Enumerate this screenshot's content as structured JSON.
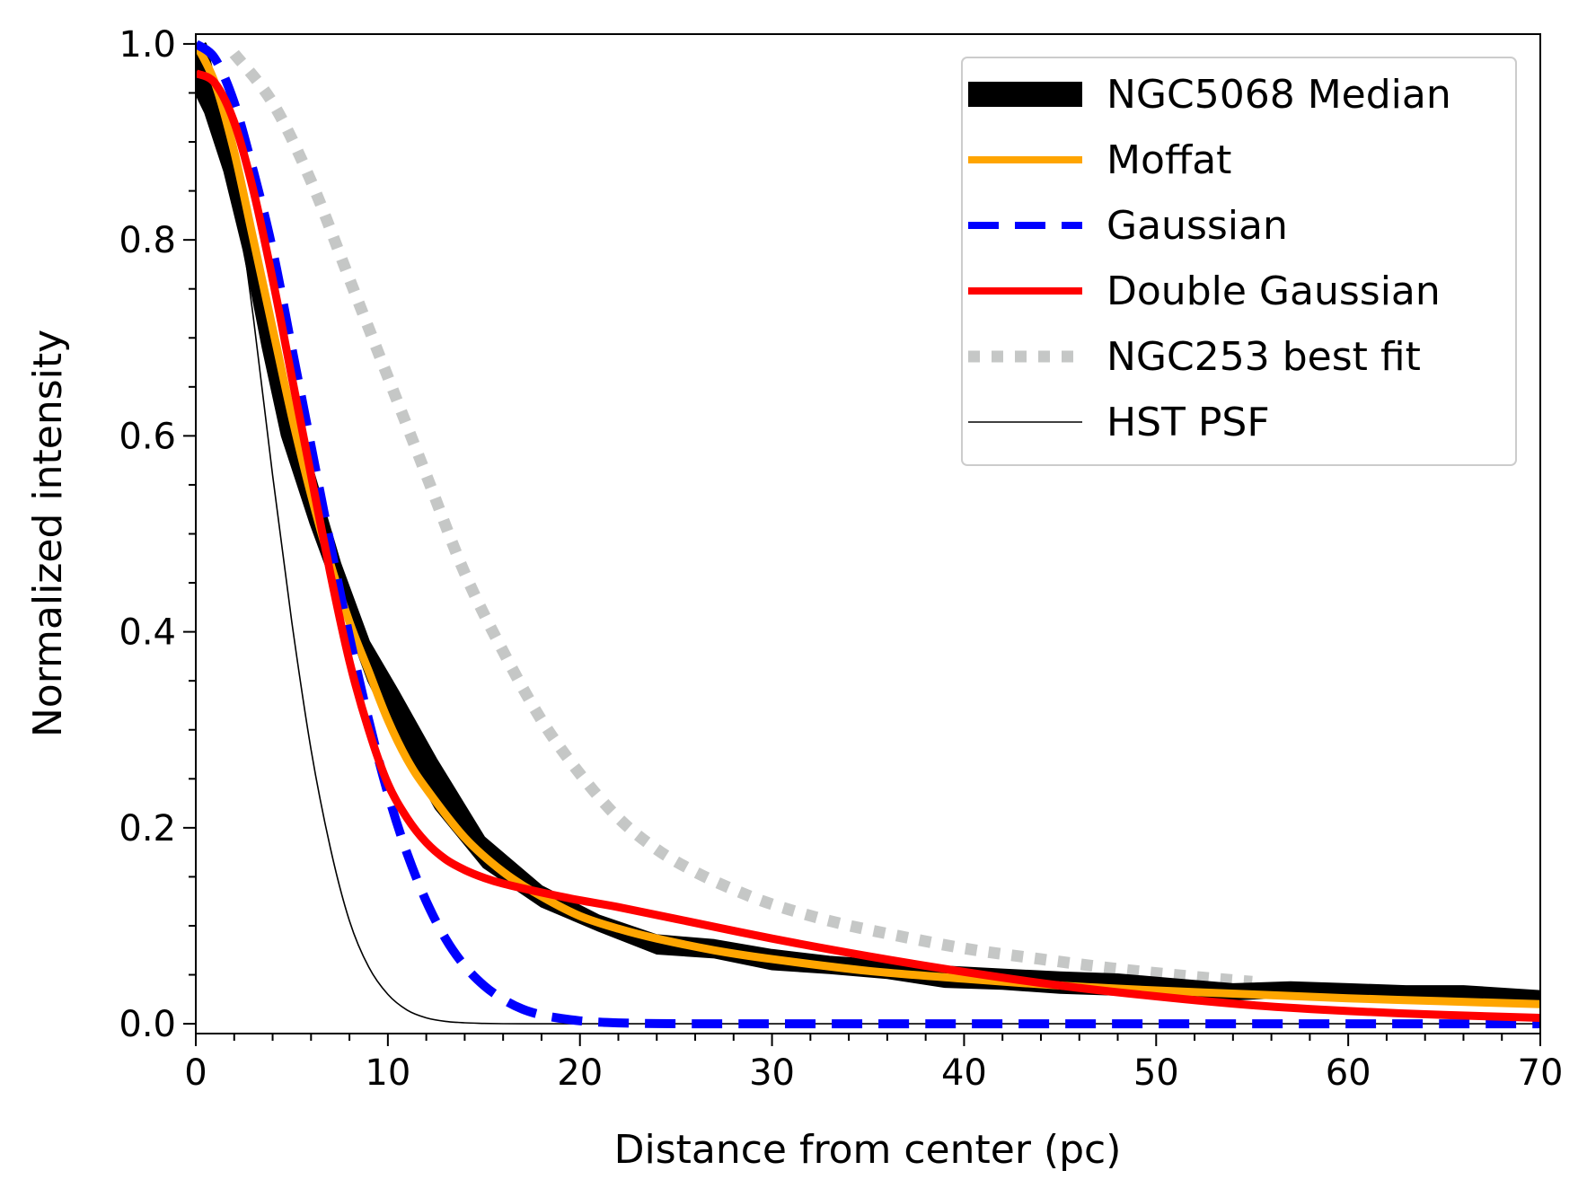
{
  "chart_data": {
    "type": "line",
    "title": "",
    "xlabel": "Distance from center (pc)",
    "ylabel": "Normalized intensity",
    "xlim": [
      0,
      70
    ],
    "ylim": [
      -0.01,
      1.01
    ],
    "xticks": [
      0,
      10,
      20,
      30,
      40,
      50,
      60,
      70
    ],
    "xtick_labels": [
      "0",
      "10",
      "20",
      "30",
      "40",
      "50",
      "60",
      "70"
    ],
    "xminor_step": 2,
    "yticks": [
      0.0,
      0.2,
      0.4,
      0.6,
      0.8,
      1.0
    ],
    "ytick_labels": [
      "0.0",
      "0.2",
      "0.4",
      "0.6",
      "0.8",
      "1.0"
    ],
    "yminor_step": 0.05,
    "grid": false,
    "legend_position": "top-right",
    "series": [
      {
        "name": "NGC5068 Median",
        "style": "band",
        "color": "#000000",
        "x": [
          0,
          0.5,
          1.5,
          2.5,
          3.5,
          4.5,
          6,
          7.5,
          9,
          10.5,
          12.5,
          15,
          18,
          21,
          24,
          27,
          30,
          33,
          36,
          39,
          42,
          45,
          48,
          51,
          54,
          57,
          60,
          63,
          66,
          70
        ],
        "upper": [
          0.99,
          1.0,
          0.92,
          0.83,
          0.74,
          0.66,
          0.57,
          0.47,
          0.39,
          0.34,
          0.27,
          0.19,
          0.14,
          0.11,
          0.09,
          0.085,
          0.075,
          0.068,
          0.064,
          0.058,
          0.055,
          0.052,
          0.05,
          0.045,
          0.04,
          0.042,
          0.04,
          0.038,
          0.038,
          0.033
        ],
        "lower": [
          0.95,
          0.93,
          0.87,
          0.79,
          0.69,
          0.6,
          0.51,
          0.43,
          0.35,
          0.29,
          0.22,
          0.16,
          0.12,
          0.095,
          0.072,
          0.068,
          0.056,
          0.052,
          0.047,
          0.038,
          0.036,
          0.032,
          0.03,
          0.027,
          0.025,
          0.028,
          0.026,
          0.026,
          0.026,
          0.022
        ]
      },
      {
        "name": "Moffat",
        "style": "solid",
        "color": "#ffa500",
        "x": [
          0,
          1,
          2,
          3,
          4,
          5,
          6,
          7,
          8,
          9,
          10,
          11,
          12,
          14,
          16,
          18,
          20,
          22,
          24,
          27,
          30,
          35,
          40,
          45,
          50,
          55,
          60,
          65,
          70
        ],
        "y": [
          1.0,
          0.96,
          0.89,
          0.8,
          0.71,
          0.62,
          0.54,
          0.47,
          0.41,
          0.36,
          0.31,
          0.27,
          0.24,
          0.19,
          0.155,
          0.13,
          0.11,
          0.097,
          0.087,
          0.075,
          0.066,
          0.054,
          0.046,
          0.039,
          0.034,
          0.03,
          0.026,
          0.023,
          0.02
        ]
      },
      {
        "name": "Gaussian",
        "style": "dashed",
        "color": "#0000ff",
        "x": [
          0,
          1,
          2,
          3,
          4,
          5,
          6,
          7,
          8,
          9,
          10,
          11,
          12,
          13,
          14,
          15,
          16,
          17,
          18,
          19,
          20,
          21,
          22,
          23,
          24,
          26,
          28,
          30,
          40,
          50,
          60,
          70
        ],
        "y": [
          1.0,
          0.985,
          0.94,
          0.87,
          0.79,
          0.69,
          0.59,
          0.49,
          0.395,
          0.31,
          0.235,
          0.174,
          0.125,
          0.087,
          0.059,
          0.039,
          0.025,
          0.015,
          0.009,
          0.0055,
          0.003,
          0.0016,
          0.0009,
          0.0004,
          0.0002,
          0,
          0,
          0,
          0,
          0,
          0,
          0
        ]
      },
      {
        "name": "Double Gaussian",
        "style": "solid",
        "color": "#ff0000",
        "x": [
          0,
          1,
          2,
          3,
          4,
          5,
          6,
          7,
          8,
          9,
          10,
          11,
          12,
          13,
          14,
          15,
          16,
          18,
          20,
          22,
          25,
          30,
          35,
          40,
          45,
          50,
          55,
          60,
          65,
          70
        ],
        "y": [
          0.97,
          0.96,
          0.92,
          0.85,
          0.76,
          0.66,
          0.56,
          0.46,
          0.37,
          0.3,
          0.245,
          0.21,
          0.185,
          0.168,
          0.157,
          0.149,
          0.143,
          0.134,
          0.126,
          0.119,
          0.107,
          0.087,
          0.069,
          0.053,
          0.039,
          0.028,
          0.019,
          0.013,
          0.009,
          0.006
        ]
      },
      {
        "name": "NGC253 best fit",
        "style": "dotted",
        "color": "#c5c7c6",
        "x": [
          2,
          4,
          6,
          8,
          10,
          12,
          14,
          16,
          18,
          20,
          22,
          24,
          26,
          28,
          30,
          33,
          36,
          40,
          44,
          48,
          52,
          55
        ],
        "y": [
          0.99,
          0.94,
          0.86,
          0.76,
          0.66,
          0.56,
          0.46,
          0.38,
          0.31,
          0.255,
          0.21,
          0.178,
          0.155,
          0.137,
          0.122,
          0.105,
          0.092,
          0.077,
          0.066,
          0.056,
          0.048,
          0.043
        ]
      },
      {
        "name": "HST PSF",
        "style": "thin",
        "color": "#000000",
        "x": [
          0,
          1,
          2,
          3,
          4,
          5,
          6,
          7,
          8,
          9,
          10,
          11,
          12,
          13,
          14,
          15,
          16,
          17,
          18,
          19,
          20,
          22,
          25,
          30,
          40,
          50,
          60,
          70
        ],
        "y": [
          1.0,
          0.96,
          0.86,
          0.72,
          0.56,
          0.41,
          0.28,
          0.18,
          0.105,
          0.058,
          0.03,
          0.014,
          0.006,
          0.0025,
          0.001,
          0.0004,
          0.0001,
          0,
          0,
          0,
          0,
          0,
          0,
          0,
          0,
          0,
          0,
          0
        ]
      }
    ]
  }
}
